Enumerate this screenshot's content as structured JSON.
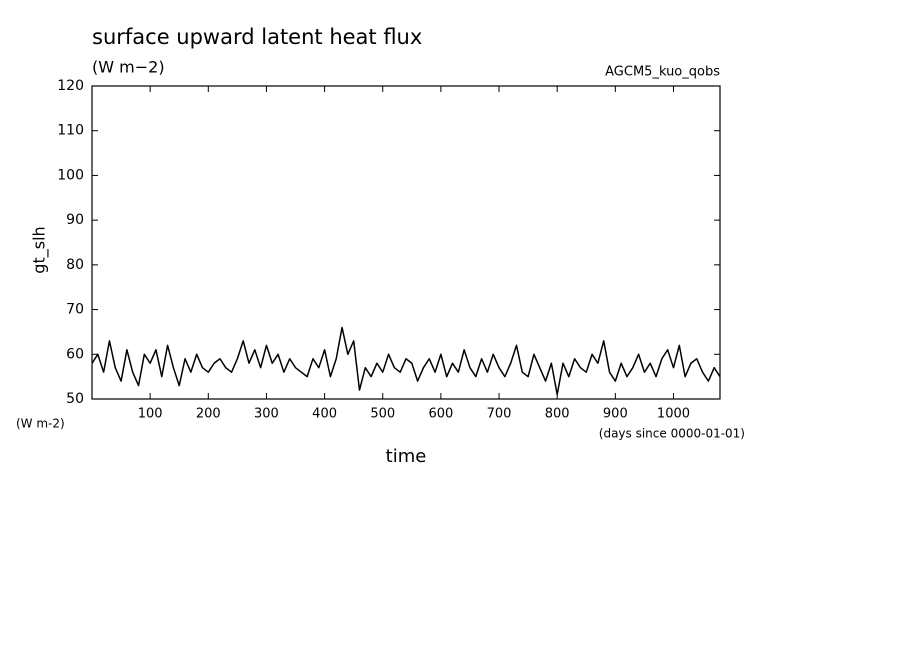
{
  "chart_data": {
    "type": "line",
    "title": "surface upward latent heat flux",
    "subtitle": "(W m−2)",
    "annotation": "AGCM5_kuo_qobs",
    "ylabel": "gt_slh",
    "xlabel": "time",
    "y_unit": "(W m-2)",
    "x_unit": "(days since 0000-01-01)",
    "color": "#000000",
    "xlim": [
      0,
      1080
    ],
    "ylim": [
      50,
      120
    ],
    "xticks": [
      100,
      200,
      300,
      400,
      500,
      600,
      700,
      800,
      900,
      1000
    ],
    "yticks": [
      50,
      60,
      70,
      80,
      90,
      100,
      110,
      120
    ],
    "x": [
      0,
      10,
      20,
      30,
      40,
      50,
      60,
      70,
      80,
      90,
      100,
      110,
      120,
      130,
      140,
      150,
      160,
      170,
      180,
      190,
      200,
      210,
      220,
      230,
      240,
      250,
      260,
      270,
      280,
      290,
      300,
      310,
      320,
      330,
      340,
      350,
      360,
      370,
      380,
      390,
      400,
      410,
      420,
      430,
      440,
      450,
      460,
      470,
      480,
      490,
      500,
      510,
      520,
      530,
      540,
      550,
      560,
      570,
      580,
      590,
      600,
      610,
      620,
      630,
      640,
      650,
      660,
      670,
      680,
      690,
      700,
      710,
      720,
      730,
      740,
      750,
      760,
      770,
      780,
      790,
      800,
      810,
      820,
      830,
      840,
      850,
      860,
      870,
      880,
      890,
      900,
      910,
      920,
      930,
      940,
      950,
      960,
      970,
      980,
      990,
      1000,
      1010,
      1020,
      1030,
      1040,
      1050,
      1060,
      1070,
      1080
    ],
    "values": [
      58,
      60,
      56,
      63,
      57,
      54,
      61,
      56,
      53,
      60,
      58,
      61,
      55,
      62,
      57,
      53,
      59,
      56,
      60,
      57,
      56,
      58,
      59,
      57,
      56,
      59,
      63,
      58,
      61,
      57,
      62,
      58,
      60,
      56,
      59,
      57,
      56,
      55,
      59,
      57,
      61,
      55,
      59,
      66,
      60,
      63,
      52,
      57,
      55,
      58,
      56,
      60,
      57,
      56,
      59,
      58,
      54,
      57,
      59,
      56,
      60,
      55,
      58,
      56,
      61,
      57,
      55,
      59,
      56,
      60,
      57,
      55,
      58,
      62,
      56,
      55,
      60,
      57,
      54,
      58,
      51,
      58,
      55,
      59,
      57,
      56,
      60,
      58,
      63,
      56,
      54,
      58,
      55,
      57,
      60,
      56,
      58,
      55,
      59,
      61,
      57,
      62,
      55,
      58,
      59,
      56,
      54,
      57,
      55
    ]
  }
}
